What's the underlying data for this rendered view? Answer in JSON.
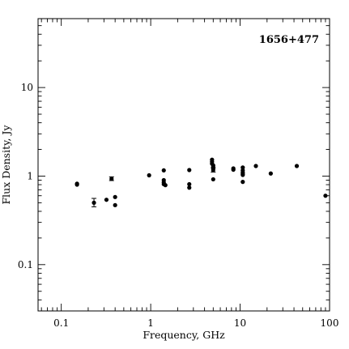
{
  "chart_data": {
    "type": "scatter",
    "title": "1656+477",
    "xlabel": "Frequency, GHz",
    "ylabel": "Flux Density, Jy",
    "x_scale": "log",
    "y_scale": "log",
    "xlim": [
      0.055,
      100
    ],
    "ylim": [
      0.03,
      60
    ],
    "x_ticks": [
      {
        "value": 0.1,
        "label": "0.1"
      },
      {
        "value": 1,
        "label": "1"
      },
      {
        "value": 10,
        "label": "10"
      },
      {
        "value": 100,
        "label": "100"
      }
    ],
    "y_ticks": [
      {
        "value": 0.1,
        "label": "0.1"
      },
      {
        "value": 1,
        "label": "1"
      },
      {
        "value": 10,
        "label": "10"
      }
    ],
    "grid": false,
    "legend": "none",
    "points": [
      {
        "x": 0.15,
        "y": 0.82
      },
      {
        "x": 0.15,
        "y": 0.8
      },
      {
        "x": 0.232,
        "y": 0.5,
        "yerr": [
          0.45,
          0.56
        ]
      },
      {
        "x": 0.32,
        "y": 0.54
      },
      {
        "x": 0.365,
        "y": 0.93,
        "yerr": [
          0.89,
          0.98
        ]
      },
      {
        "x": 0.4,
        "y": 0.58
      },
      {
        "x": 0.4,
        "y": 0.47
      },
      {
        "x": 0.96,
        "y": 1.02
      },
      {
        "x": 1.4,
        "y": 1.16
      },
      {
        "x": 1.4,
        "y": 0.9
      },
      {
        "x": 1.4,
        "y": 0.85
      },
      {
        "x": 1.4,
        "y": 0.81
      },
      {
        "x": 1.46,
        "y": 0.79
      },
      {
        "x": 2.7,
        "y": 1.17
      },
      {
        "x": 2.7,
        "y": 0.81
      },
      {
        "x": 2.7,
        "y": 0.74
      },
      {
        "x": 4.85,
        "y": 1.53
      },
      {
        "x": 4.85,
        "y": 1.45
      },
      {
        "x": 4.85,
        "y": 1.38
      },
      {
        "x": 5.0,
        "y": 1.32
      },
      {
        "x": 5.0,
        "y": 1.27
      },
      {
        "x": 5.0,
        "y": 1.22
      },
      {
        "x": 5.0,
        "y": 1.17,
        "yerr": [
          1.11,
          1.24
        ]
      },
      {
        "x": 5.0,
        "y": 0.92
      },
      {
        "x": 8.4,
        "y": 1.22
      },
      {
        "x": 8.4,
        "y": 1.18
      },
      {
        "x": 10.7,
        "y": 1.25
      },
      {
        "x": 10.7,
        "y": 1.16
      },
      {
        "x": 10.7,
        "y": 1.1
      },
      {
        "x": 10.7,
        "y": 1.06
      },
      {
        "x": 10.7,
        "y": 1.03
      },
      {
        "x": 10.7,
        "y": 0.86
      },
      {
        "x": 15,
        "y": 1.3
      },
      {
        "x": 22,
        "y": 1.07
      },
      {
        "x": 43,
        "y": 1.3
      },
      {
        "x": 90,
        "y": 0.6
      }
    ]
  }
}
